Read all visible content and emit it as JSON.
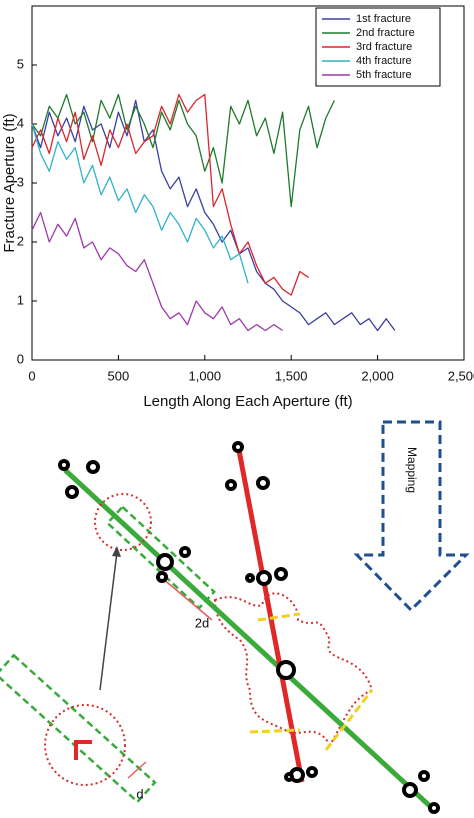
{
  "chart_data": {
    "type": "line",
    "x_label": "Length Along Each Aperture (ft)",
    "y_label": "Fracture Aperture (ft)",
    "x": [
      0,
      50,
      100,
      150,
      200,
      250,
      300,
      350,
      400,
      450,
      500,
      550,
      600,
      650,
      700,
      750,
      800,
      850,
      900,
      950,
      1000,
      1050,
      1100,
      1150,
      1200,
      1250,
      1300,
      1350,
      1400,
      1450,
      1500,
      1550,
      1600,
      1650,
      1700,
      1750,
      1800,
      1850,
      1900,
      1950,
      2000,
      2050,
      2100
    ],
    "xlim": [
      0,
      2500
    ],
    "xticks": [
      0,
      500,
      {
        "value": 1000,
        "label": "1,000"
      },
      {
        "value": 1500,
        "label": "1,500"
      },
      {
        "value": 2000,
        "label": "2,000"
      },
      {
        "value": 2500,
        "label": "2,500"
      }
    ],
    "ylim": [
      0,
      6
    ],
    "yticks": [
      0,
      1,
      2,
      3,
      4,
      5
    ],
    "legend": "upper right",
    "series": [
      {
        "name": "1st fracture",
        "color": "#3a3fa0",
        "values": [
          4.0,
          3.6,
          4.2,
          3.8,
          4.1,
          3.7,
          4.3,
          3.9,
          4.0,
          3.6,
          4.2,
          3.8,
          4.4,
          3.7,
          3.9,
          3.2,
          2.9,
          3.1,
          2.6,
          2.9,
          2.5,
          2.3,
          2.0,
          2.2,
          1.8,
          1.9,
          1.5,
          1.3,
          1.2,
          1.0,
          0.9,
          0.8,
          0.6,
          0.7,
          0.8,
          0.6,
          0.7,
          0.8,
          0.6,
          0.7,
          0.5,
          0.7,
          0.5
        ]
      },
      {
        "name": "2nd fracture",
        "color": "#1e7a2a",
        "values": [
          4.0,
          3.8,
          4.3,
          4.1,
          4.5,
          4.0,
          4.2,
          3.7,
          4.4,
          4.1,
          4.5,
          3.9,
          4.3,
          4.0,
          3.6,
          4.2,
          3.9,
          4.4,
          4.0,
          3.8,
          3.2,
          3.6,
          3.0,
          4.3,
          4.0,
          4.4,
          3.8,
          4.1,
          3.5,
          4.2,
          2.6,
          3.9,
          4.3,
          3.6,
          4.1,
          4.4,
          null,
          null,
          null,
          null,
          null,
          null,
          null
        ]
      },
      {
        "name": "3rd fracture",
        "color": "#d9262b",
        "values": [
          3.6,
          3.9,
          3.5,
          4.1,
          3.7,
          4.2,
          3.4,
          3.8,
          3.3,
          3.9,
          3.6,
          4.0,
          3.5,
          3.7,
          3.8,
          4.3,
          4.0,
          4.5,
          4.2,
          4.4,
          4.5,
          2.6,
          2.9,
          2.3,
          1.8,
          2.0,
          1.6,
          1.3,
          1.4,
          1.2,
          1.1,
          1.5,
          1.4,
          null,
          null,
          null,
          null,
          null,
          null,
          null,
          null,
          null,
          null
        ]
      },
      {
        "name": "4th fracture",
        "color": "#2fb3c8",
        "values": [
          4.0,
          3.5,
          3.2,
          3.7,
          3.4,
          3.6,
          3.0,
          3.3,
          2.8,
          3.1,
          2.7,
          2.9,
          2.5,
          2.8,
          2.6,
          2.2,
          2.5,
          2.3,
          2.0,
          2.4,
          2.2,
          1.9,
          2.1,
          1.7,
          1.8,
          1.3,
          null,
          null,
          null,
          null,
          null,
          null,
          null,
          null,
          null,
          null,
          null,
          null,
          null,
          null,
          null,
          null,
          null
        ]
      },
      {
        "name": "5th fracture",
        "color": "#9b3aa8",
        "values": [
          2.2,
          2.5,
          2.0,
          2.3,
          2.1,
          2.4,
          1.9,
          2.0,
          1.7,
          1.9,
          1.8,
          1.6,
          1.5,
          1.7,
          1.3,
          0.9,
          0.7,
          0.8,
          0.6,
          1.0,
          0.8,
          0.7,
          0.9,
          0.6,
          0.7,
          0.5,
          0.6,
          0.5,
          0.6,
          0.5,
          null,
          null,
          null,
          null,
          null,
          null,
          null,
          null,
          null,
          null,
          null,
          null,
          null
        ]
      }
    ]
  },
  "diagram": {
    "mapping_label": "Mapping",
    "label_2d": "2d",
    "label_d": "d"
  }
}
